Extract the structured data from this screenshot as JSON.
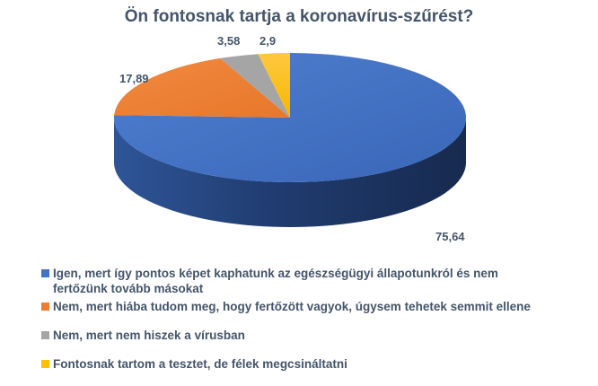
{
  "chart_data": {
    "type": "pie",
    "style": "3d",
    "title": "Ön fontosnak tartja a koronavírus-szűrést?",
    "categories": [
      "Igen, mert így pontos képet kaphatunk az egészségügyi állapotunkról és nem fertőzünk tovább másokat",
      "Nem, mert hiába tudom meg, hogy fertőzött vagyok, úgysem tehetek semmit ellene",
      "Nem, mert nem hiszek a vírusban",
      "Fontosnak tartom a tesztet, de félek megcsináltatni"
    ],
    "values": [
      75.64,
      17.89,
      3.58,
      2.9
    ],
    "value_labels": [
      "75,64",
      "17,89",
      "3,58",
      "2,9"
    ],
    "colors": [
      "#4472c4",
      "#ed7d31",
      "#a5a5a5",
      "#ffc000"
    ],
    "legend_position": "bottom"
  },
  "legend": {
    "items": [
      {
        "label": " Igen, mert így pontos képet kaphatunk az egészségügyi állapotunkról és nem fertőzünk tovább másokat",
        "color": "#4472c4"
      },
      {
        "label": "Nem, mert hiába tudom meg, hogy fertőzött vagyok, úgysem tehetek semmit ellene",
        "color": "#ed7d31"
      },
      {
        "label": "Nem, mert nem hiszek a vírusban",
        "color": "#a5a5a5"
      },
      {
        "label": "Fontosnak tartom a tesztet, de félek megcsináltatni",
        "color": "#ffc000"
      }
    ]
  }
}
